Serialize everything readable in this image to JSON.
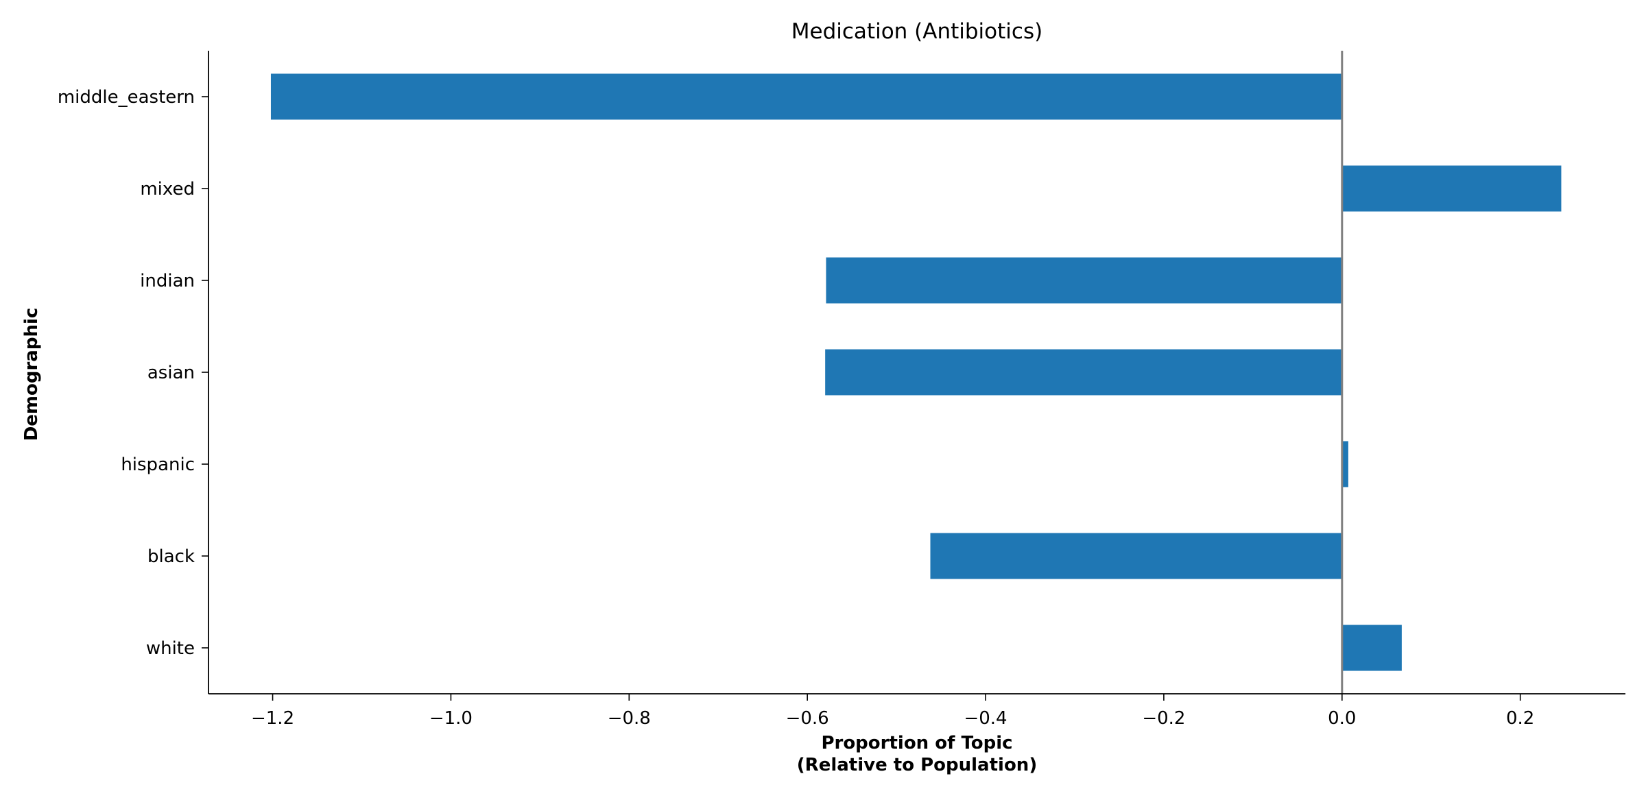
{
  "chart_data": {
    "type": "bar",
    "orientation": "horizontal",
    "title": "Medication (Antibiotics)",
    "xlabel_lines": [
      "Proportion of Topic",
      "(Relative to Population)"
    ],
    "ylabel": "Demographic",
    "categories": [
      "white",
      "black",
      "hispanic",
      "asian",
      "indian",
      "mixed",
      "middle_eastern"
    ],
    "values": [
      0.067,
      -0.462,
      0.007,
      -0.58,
      -0.579,
      0.246,
      -1.202
    ],
    "xlim": [
      -1.272,
      0.318
    ],
    "xticks": [
      -1.2,
      -1.0,
      -0.8,
      -0.6,
      -0.4,
      -0.2,
      0.0,
      0.2
    ],
    "xtick_labels": [
      "−1.2",
      "−1.0",
      "−0.8",
      "−0.6",
      "−0.4",
      "−0.2",
      "0.0",
      "0.2"
    ],
    "zero_line": true,
    "grid": false,
    "legend": false,
    "colors": {
      "bar": "#1f77b4",
      "zero_line": "#808080",
      "axis": "#000000"
    }
  }
}
